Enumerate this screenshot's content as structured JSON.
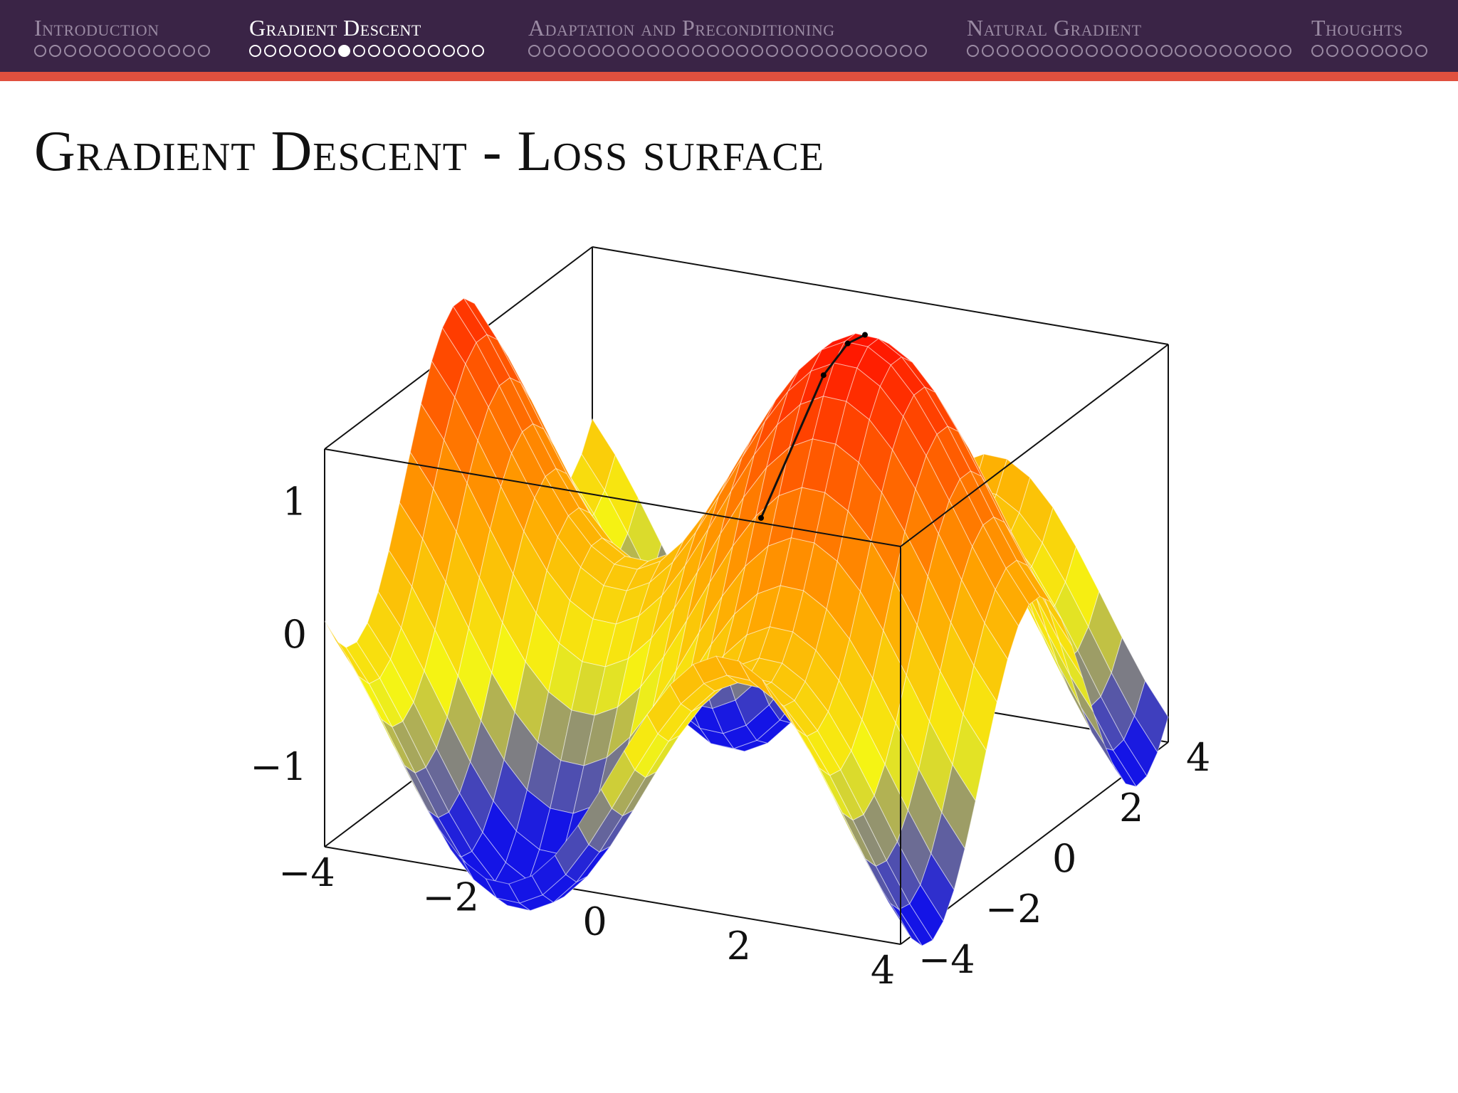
{
  "nav": {
    "sections": [
      {
        "label": "Introduction",
        "dots": 12,
        "current_dot": null,
        "active": false
      },
      {
        "label": "Gradient Descent",
        "dots": 16,
        "current_dot": 6,
        "active": true
      },
      {
        "label": "Adaptation and Preconditioning",
        "dots": 27,
        "current_dot": null,
        "active": false
      },
      {
        "label": "Natural Gradient",
        "dots": 22,
        "current_dot": null,
        "active": false
      },
      {
        "label": "Thoughts",
        "dots": 8,
        "current_dot": null,
        "active": false
      }
    ]
  },
  "slide": {
    "title": "Gradient Descent - Loss surface"
  },
  "chart_data": {
    "type": "surface",
    "title": "",
    "xlabel": "",
    "ylabel": "",
    "zlabel": "",
    "x_range": [
      -4,
      4
    ],
    "y_range": [
      -4,
      4
    ],
    "z_range": [
      -1.6,
      1.4
    ],
    "x_ticks": [
      -4,
      -2,
      0,
      2,
      4
    ],
    "y_ticks": [
      -4,
      -2,
      0,
      2,
      4
    ],
    "z_ticks": [
      -1,
      0,
      1
    ],
    "x_tick_labels": [
      "−4",
      "−2",
      "0",
      "2",
      "4"
    ],
    "y_tick_labels": [
      "−4",
      "−2",
      "0",
      "2",
      "4"
    ],
    "z_tick_labels": [
      "−1",
      "0",
      "1"
    ],
    "function": "z = sin(x) + cos(y) (approximately)",
    "mesh_samples": 25,
    "colormap": "hot: blue (low) → yellow → orange → red (high)",
    "view": "box with back panels and grid tick marks",
    "gradient_descent_path": {
      "points": [
        [
          1.6,
          0.1
        ],
        [
          1.5,
          -0.2
        ],
        [
          1.35,
          -0.6
        ],
        [
          0.9,
          -1.5
        ]
      ],
      "color": "#000000"
    }
  }
}
